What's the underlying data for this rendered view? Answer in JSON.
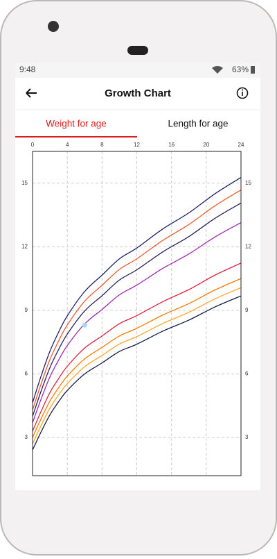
{
  "status_bar": {
    "time": "9:48",
    "battery": "63%"
  },
  "header": {
    "title": "Growth Chart"
  },
  "tabs": [
    "Weight for age",
    "Length for age"
  ],
  "chart_data": {
    "type": "line",
    "x": [
      0,
      1,
      2,
      3,
      4,
      6,
      8,
      10,
      12,
      15,
      18,
      21,
      24
    ],
    "series": [
      {
        "color": "#1a1f6b",
        "values": [
          4.64,
          5.92,
          7.07,
          7.97,
          8.74,
          9.89,
          10.66,
          11.43,
          11.94,
          12.84,
          13.6,
          14.5,
          15.27
        ]
      },
      {
        "color": "#ee5a2c",
        "values": [
          4.3,
          5.55,
          6.68,
          7.55,
          8.31,
          9.43,
          10.18,
          10.93,
          11.43,
          12.3,
          13.05,
          13.93,
          14.68
        ]
      },
      {
        "color": "#2a1f5e",
        "values": [
          4.0,
          5.21,
          6.3,
          7.15,
          7.88,
          8.97,
          9.69,
          10.43,
          10.91,
          11.76,
          12.48,
          13.34,
          14.06
        ]
      },
      {
        "color": "#9c27b0",
        "values": [
          3.7,
          4.83,
          5.86,
          6.65,
          7.34,
          8.36,
          9.04,
          9.73,
          10.19,
          10.98,
          11.66,
          12.46,
          13.14
        ]
      },
      {
        "color": "#e0203f",
        "values": [
          3.3,
          4.25,
          5.12,
          5.78,
          6.36,
          7.22,
          7.79,
          8.37,
          8.75,
          9.41,
          9.98,
          10.66,
          11.23
        ]
      },
      {
        "color": "#f57c00",
        "values": [
          3.0,
          3.9,
          4.72,
          5.35,
          5.9,
          6.71,
          7.25,
          7.79,
          8.15,
          8.78,
          9.32,
          9.96,
          10.5
        ]
      },
      {
        "color": "#ffa726",
        "values": [
          2.7,
          3.58,
          4.39,
          5.01,
          5.54,
          6.34,
          6.87,
          7.41,
          7.76,
          8.38,
          8.91,
          9.54,
          10.07
        ]
      },
      {
        "color": "#141a4a",
        "values": [
          2.41,
          3.28,
          4.07,
          4.69,
          5.22,
          6.0,
          6.52,
          7.06,
          7.4,
          8.02,
          8.54,
          9.16,
          9.68
        ]
      }
    ],
    "points": [
      {
        "x": 6,
        "y": 8.3,
        "color": "#9fd8f5"
      }
    ],
    "xlim": [
      0,
      24
    ],
    "xticks": [
      0,
      4,
      8,
      12,
      16,
      20,
      24
    ],
    "ylim": [
      1.2,
      16.5
    ],
    "yticks": [
      3,
      6,
      9,
      12,
      15
    ],
    "grid": true
  }
}
